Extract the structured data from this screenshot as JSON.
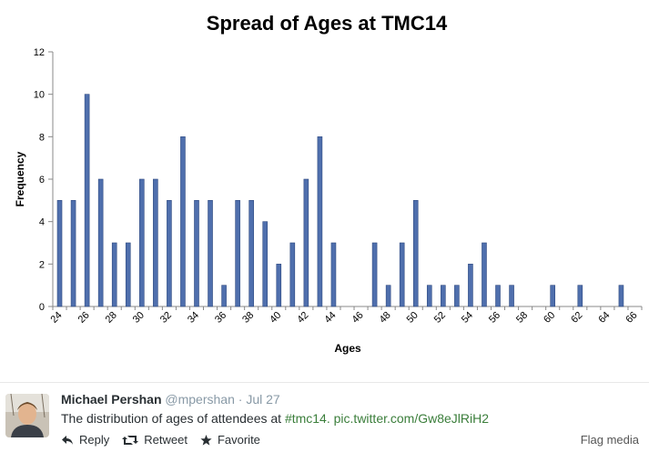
{
  "chart_data": {
    "type": "bar",
    "title": "Spread of Ages at TMC14",
    "xlabel": "Ages",
    "ylabel": "Frequency",
    "ylim": [
      0,
      12
    ],
    "yticks": [
      0,
      2,
      4,
      6,
      8,
      10,
      12
    ],
    "grid": false,
    "categories": [
      24,
      25,
      26,
      27,
      28,
      29,
      30,
      31,
      32,
      33,
      34,
      35,
      36,
      37,
      38,
      39,
      40,
      41,
      42,
      43,
      44,
      45,
      46,
      47,
      48,
      49,
      50,
      51,
      52,
      53,
      54,
      55,
      56,
      57,
      58,
      59,
      60,
      61,
      62,
      63,
      64,
      65,
      66
    ],
    "values": [
      5,
      5,
      10,
      6,
      3,
      3,
      6,
      6,
      5,
      8,
      5,
      5,
      1,
      5,
      5,
      4,
      2,
      3,
      6,
      8,
      3,
      0,
      0,
      3,
      1,
      3,
      5,
      1,
      1,
      1,
      2,
      3,
      1,
      1,
      0,
      0,
      1,
      0,
      1,
      0,
      0,
      1,
      0
    ],
    "xtick_labels": [
      "24",
      "26",
      "28",
      "30",
      "32",
      "34",
      "36",
      "38",
      "40",
      "42",
      "44",
      "46",
      "48",
      "50",
      "52",
      "54",
      "56",
      "58",
      "60",
      "62",
      "64",
      "66"
    ],
    "bar_color": "#4f6fad"
  },
  "tweet": {
    "author_name": "Michael Pershan",
    "author_handle": "@mpershan",
    "date_separator": "·",
    "date": "Jul 27",
    "text_prefix": "The distribution of ages of attendees at ",
    "hashtag": "#tmc14.",
    "link": "pic.twitter.com/Gw8eJlRiH2",
    "actions": {
      "reply": "Reply",
      "retweet": "Retweet",
      "favorite": "Favorite"
    },
    "flag_media": "Flag media"
  }
}
